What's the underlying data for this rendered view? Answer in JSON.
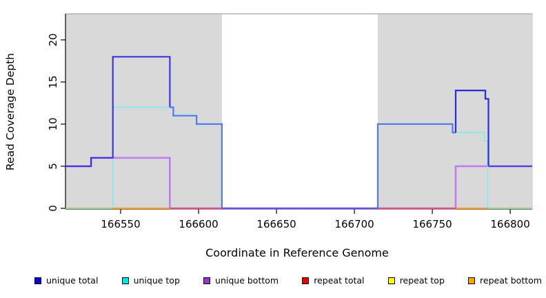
{
  "chart_data": {
    "type": "line",
    "subtype": "step-coverage",
    "title": "",
    "xlabel": "Coordinate in Reference Genome",
    "ylabel": "Read Coverage Depth",
    "xlim": [
      166514.6,
      166814.1
    ],
    "ylim": [
      0,
      23.1
    ],
    "x_ticks": [
      166550,
      166600,
      166650,
      166700,
      166750,
      166800
    ],
    "y_ticks": [
      0,
      5,
      10,
      15,
      20
    ],
    "grid": false,
    "legend_position": "bottom",
    "panel_background": "#ffffff",
    "shaded_region_color": "#d9d9d9",
    "shaded_regions": [
      [
        166514.6,
        166615
      ],
      [
        166715,
        166814.1
      ]
    ],
    "series": [
      {
        "name": "repeat top",
        "legend_color": "#ffff00",
        "polylines": [
          {
            "color": "#ffe12e",
            "width": 2,
            "points": [
              [
                166514.6,
                0
              ],
              [
                166814.1,
                0
              ]
            ]
          }
        ]
      },
      {
        "name": "repeat bottom",
        "legend_color": "#ffa500",
        "polylines": [
          {
            "color": "#ff9d28",
            "width": 2.2,
            "points": [
              [
                166514.6,
                0
              ],
              [
                166814.1,
                0
              ]
            ]
          }
        ]
      },
      {
        "name": "repeat total",
        "legend_color": "#ee0000",
        "polylines": [
          {
            "color": "#e03a55",
            "width": 2,
            "points": [
              [
                166514.6,
                0
              ],
              [
                166814.1,
                0
              ]
            ]
          }
        ]
      },
      {
        "name": "unique bottom",
        "legend_color": "#9932cc",
        "polylines": [
          {
            "color": "#c07bf0",
            "width": 2.6,
            "points": [
              [
                166514.6,
                5
              ],
              [
                166531,
                5
              ],
              [
                166531,
                6
              ],
              [
                166581.6,
                6
              ],
              [
                166581.6,
                0
              ],
              [
                166765,
                0
              ],
              [
                166765,
                5
              ],
              [
                166814.1,
                5
              ]
            ]
          }
        ]
      },
      {
        "name": "unique top",
        "legend_color": "#00e5ee",
        "polylines": [
          {
            "color": "#8fe7ef",
            "width": 2,
            "points": [
              [
                166545,
                0
              ],
              [
                166545,
                12
              ],
              [
                166583.8,
                12
              ],
              [
                166583.8,
                11
              ],
              [
                166598.7,
                11
              ],
              [
                166598.7,
                10
              ],
              [
                166615,
                10
              ],
              [
                166615,
                0
              ],
              [
                166715,
                0
              ],
              [
                166715,
                10
              ],
              [
                166763,
                10
              ],
              [
                166763,
                9
              ],
              [
                166783.5,
                9
              ],
              [
                166783.5,
                8
              ],
              [
                166785.5,
                8
              ],
              [
                166785.5,
                0
              ]
            ]
          }
        ]
      },
      {
        "name": "zero overlays",
        "legend_color": null,
        "polylines": [
          {
            "color": "#90d79e",
            "width": 2,
            "points": [
              [
                166514.6,
                0
              ],
              [
                166545,
                0
              ]
            ]
          },
          {
            "color": "#ff9d2e",
            "width": 2,
            "points": [
              [
                166545,
                0
              ],
              [
                166581.6,
                0
              ]
            ]
          },
          {
            "color": "#e0507c",
            "width": 2,
            "points": [
              [
                166581.6,
                0
              ],
              [
                166615,
                0
              ]
            ]
          },
          {
            "color": "#e0507c",
            "width": 2,
            "points": [
              [
                166715,
                0
              ],
              [
                166765,
                0
              ]
            ]
          },
          {
            "color": "#ff9d2e",
            "width": 2,
            "points": [
              [
                166765,
                0
              ],
              [
                166785.5,
                0
              ]
            ]
          },
          {
            "color": "#90d79e",
            "width": 2,
            "points": [
              [
                166785.5,
                0
              ],
              [
                166814.1,
                0
              ]
            ]
          }
        ]
      },
      {
        "name": "unique total",
        "legend_color": "#0000ee",
        "polylines": [
          {
            "color": "#3a35e0",
            "width": 2.2,
            "points": [
              [
                166514.6,
                5
              ],
              [
                166531,
                5
              ],
              [
                166531,
                6
              ],
              [
                166545,
                6
              ],
              [
                166545,
                18
              ],
              [
                166581.6,
                18
              ],
              [
                166581.6,
                12
              ]
            ]
          },
          {
            "color": "#4d7deb",
            "width": 2.2,
            "points": [
              [
                166581.6,
                12
              ],
              [
                166583.8,
                12
              ],
              [
                166583.8,
                11
              ],
              [
                166598.7,
                11
              ],
              [
                166598.7,
                10
              ],
              [
                166615,
                10
              ],
              [
                166615,
                0
              ]
            ]
          },
          {
            "color": "#5b55e8",
            "width": 2.2,
            "points": [
              [
                166615,
                0
              ],
              [
                166715,
                0
              ]
            ]
          },
          {
            "color": "#4d7deb",
            "width": 2.2,
            "points": [
              [
                166715,
                0
              ],
              [
                166715,
                10
              ],
              [
                166763,
                10
              ],
              [
                166763,
                9
              ],
              [
                166765,
                9
              ]
            ]
          },
          {
            "color": "#2b2bdd",
            "width": 2.2,
            "points": [
              [
                166765,
                9
              ],
              [
                166765,
                14
              ],
              [
                166784,
                14
              ],
              [
                166784,
                13
              ],
              [
                166786,
                13
              ],
              [
                166786,
                5
              ]
            ]
          },
          {
            "color": "#4b42e0",
            "width": 2.2,
            "points": [
              [
                166786,
                5
              ],
              [
                166814.1,
                5
              ]
            ]
          }
        ]
      }
    ]
  },
  "axes": {
    "x_label": "Coordinate in Reference Genome",
    "y_label": "Read Coverage Depth"
  },
  "legend": {
    "items": [
      {
        "label": "unique total",
        "color": "#0000ee"
      },
      {
        "label": "unique top",
        "color": "#00e5ee"
      },
      {
        "label": "unique bottom",
        "color": "#9932cc"
      },
      {
        "label": "repeat total",
        "color": "#ee0000"
      },
      {
        "label": "repeat top",
        "color": "#ffff00"
      },
      {
        "label": "repeat bottom",
        "color": "#ffa500"
      }
    ]
  },
  "style_colors": {
    "axis": "#000000",
    "panel_top_border": "#b3b3b3",
    "tick_label": "#000000"
  }
}
